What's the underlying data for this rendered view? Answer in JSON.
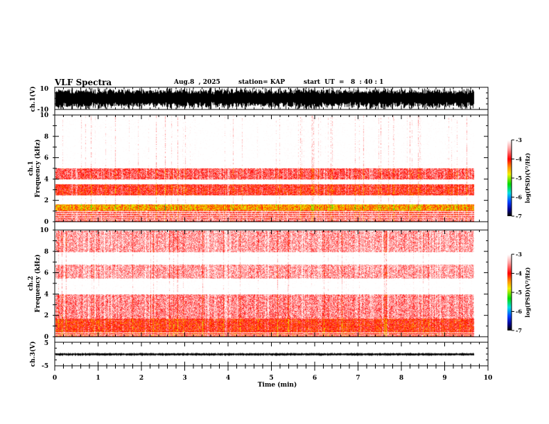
{
  "header": {
    "title": "VLF Spectra",
    "date": "Aug.8  , 2025",
    "station": "station= KAP",
    "start": "start  UT  =   8  : 40 : 1"
  },
  "chart_data": [
    {
      "type": "line",
      "name": "ch1-waveform",
      "ylabel": "ch.1(V)",
      "ylim": [
        -10,
        10
      ],
      "yticks": [
        "10",
        "-10"
      ],
      "xlim": [
        0,
        10
      ],
      "data_end_min": 9.83
    },
    {
      "type": "heatmap",
      "name": "ch1-spectrogram",
      "ylabel_line1": "ch.1",
      "ylabel_line2": "Frequency  (kHz)",
      "ylim": [
        0,
        10
      ],
      "yticks": [
        "0",
        "2",
        "4",
        "6",
        "8",
        "10"
      ],
      "xlim": [
        0,
        10
      ],
      "colorbar": {
        "label": "log(PSD)(V²/Hz)",
        "ticks": [
          "-3",
          "-4",
          "-5",
          "-6",
          "-7"
        ],
        "range": [
          -7,
          -3
        ]
      },
      "bands_khz": [
        {
          "from": 0.0,
          "to": 1.0,
          "level": -3.8
        },
        {
          "from": 1.0,
          "to": 1.6,
          "level": -4.5
        },
        {
          "from": 2.5,
          "to": 3.5,
          "level": -3.9
        },
        {
          "from": 4.0,
          "to": 5.0,
          "level": -3.7
        }
      ]
    },
    {
      "type": "heatmap",
      "name": "ch2-spectrogram",
      "ylabel_line1": "ch.2",
      "ylabel_line2": "Frequency  (kHz)",
      "ylim": [
        0,
        10
      ],
      "yticks": [
        "0",
        "2",
        "4",
        "6",
        "8",
        "10"
      ],
      "xlim": [
        0,
        10
      ],
      "colorbar": {
        "label": "log(PSD)(V²/Hz)",
        "ticks": [
          "-3",
          "-4",
          "-5",
          "-6",
          "-7"
        ],
        "range": [
          -7,
          -3
        ]
      },
      "bands_khz": [
        {
          "from": 0.0,
          "to": 1.7,
          "level": -4.0
        },
        {
          "from": 1.7,
          "to": 4.0,
          "level": -3.5
        },
        {
          "from": 5.5,
          "to": 6.8,
          "level": -3.4
        },
        {
          "from": 8.0,
          "to": 10.0,
          "level": -3.4
        }
      ]
    },
    {
      "type": "line",
      "name": "ch3-waveform",
      "ylabel": "ch.3(V)",
      "ylim": [
        -5,
        5
      ],
      "yticks": [
        "5",
        "-5"
      ],
      "xlim": [
        0,
        10
      ],
      "mean_value": 0,
      "data_end_min": 9.83
    }
  ],
  "xaxis": {
    "label": "Time  (min)",
    "ticks": [
      "0",
      "1",
      "2",
      "3",
      "4",
      "5",
      "6",
      "7",
      "8",
      "9",
      "10"
    ]
  },
  "colors": {
    "axis": "#000000",
    "background": "#ffffff"
  }
}
